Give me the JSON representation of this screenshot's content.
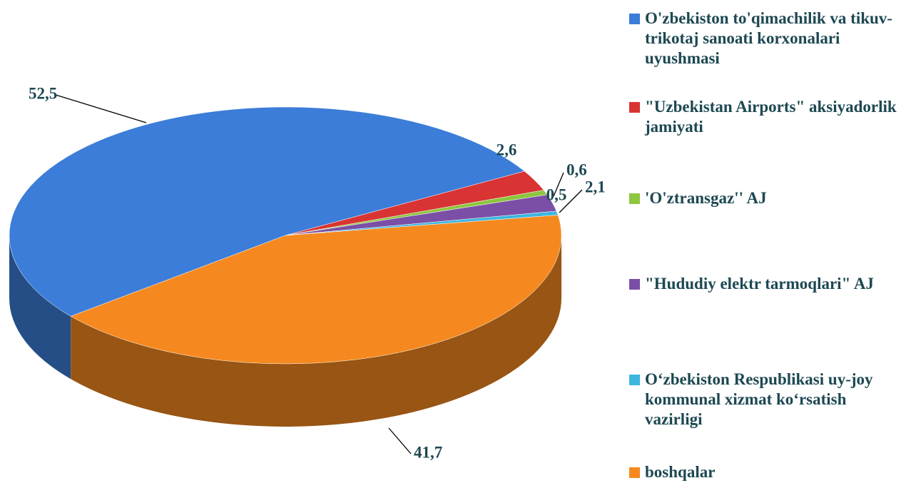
{
  "chart_data": {
    "type": "pie",
    "categories": [
      "O'zbekiston to'qimachilik va tikuv- trikotaj sanoati korxonalari uyushmasi",
      "\"Uzbekistan Airports\" aksiyadorlik jamiyati",
      "'O'ztransgaz'' AJ",
      "\"Hududiy elektr tarmoqlari\" AJ",
      "O‘zbekiston Respublikasi uy-joy kommunal xizmat ko‘rsatish vazirligi",
      "boshqalar"
    ],
    "values": [
      52.5,
      2.6,
      0.6,
      2.1,
      0.5,
      41.7
    ],
    "value_labels": [
      "52,5",
      "2,6",
      "0,6",
      "2,1",
      "0,5",
      "41,7"
    ],
    "colors": [
      "#3b7dd8",
      "#d93434",
      "#8dc63f",
      "#7b4fa6",
      "#3db6e0",
      "#f5891f"
    ],
    "legend": "right"
  }
}
